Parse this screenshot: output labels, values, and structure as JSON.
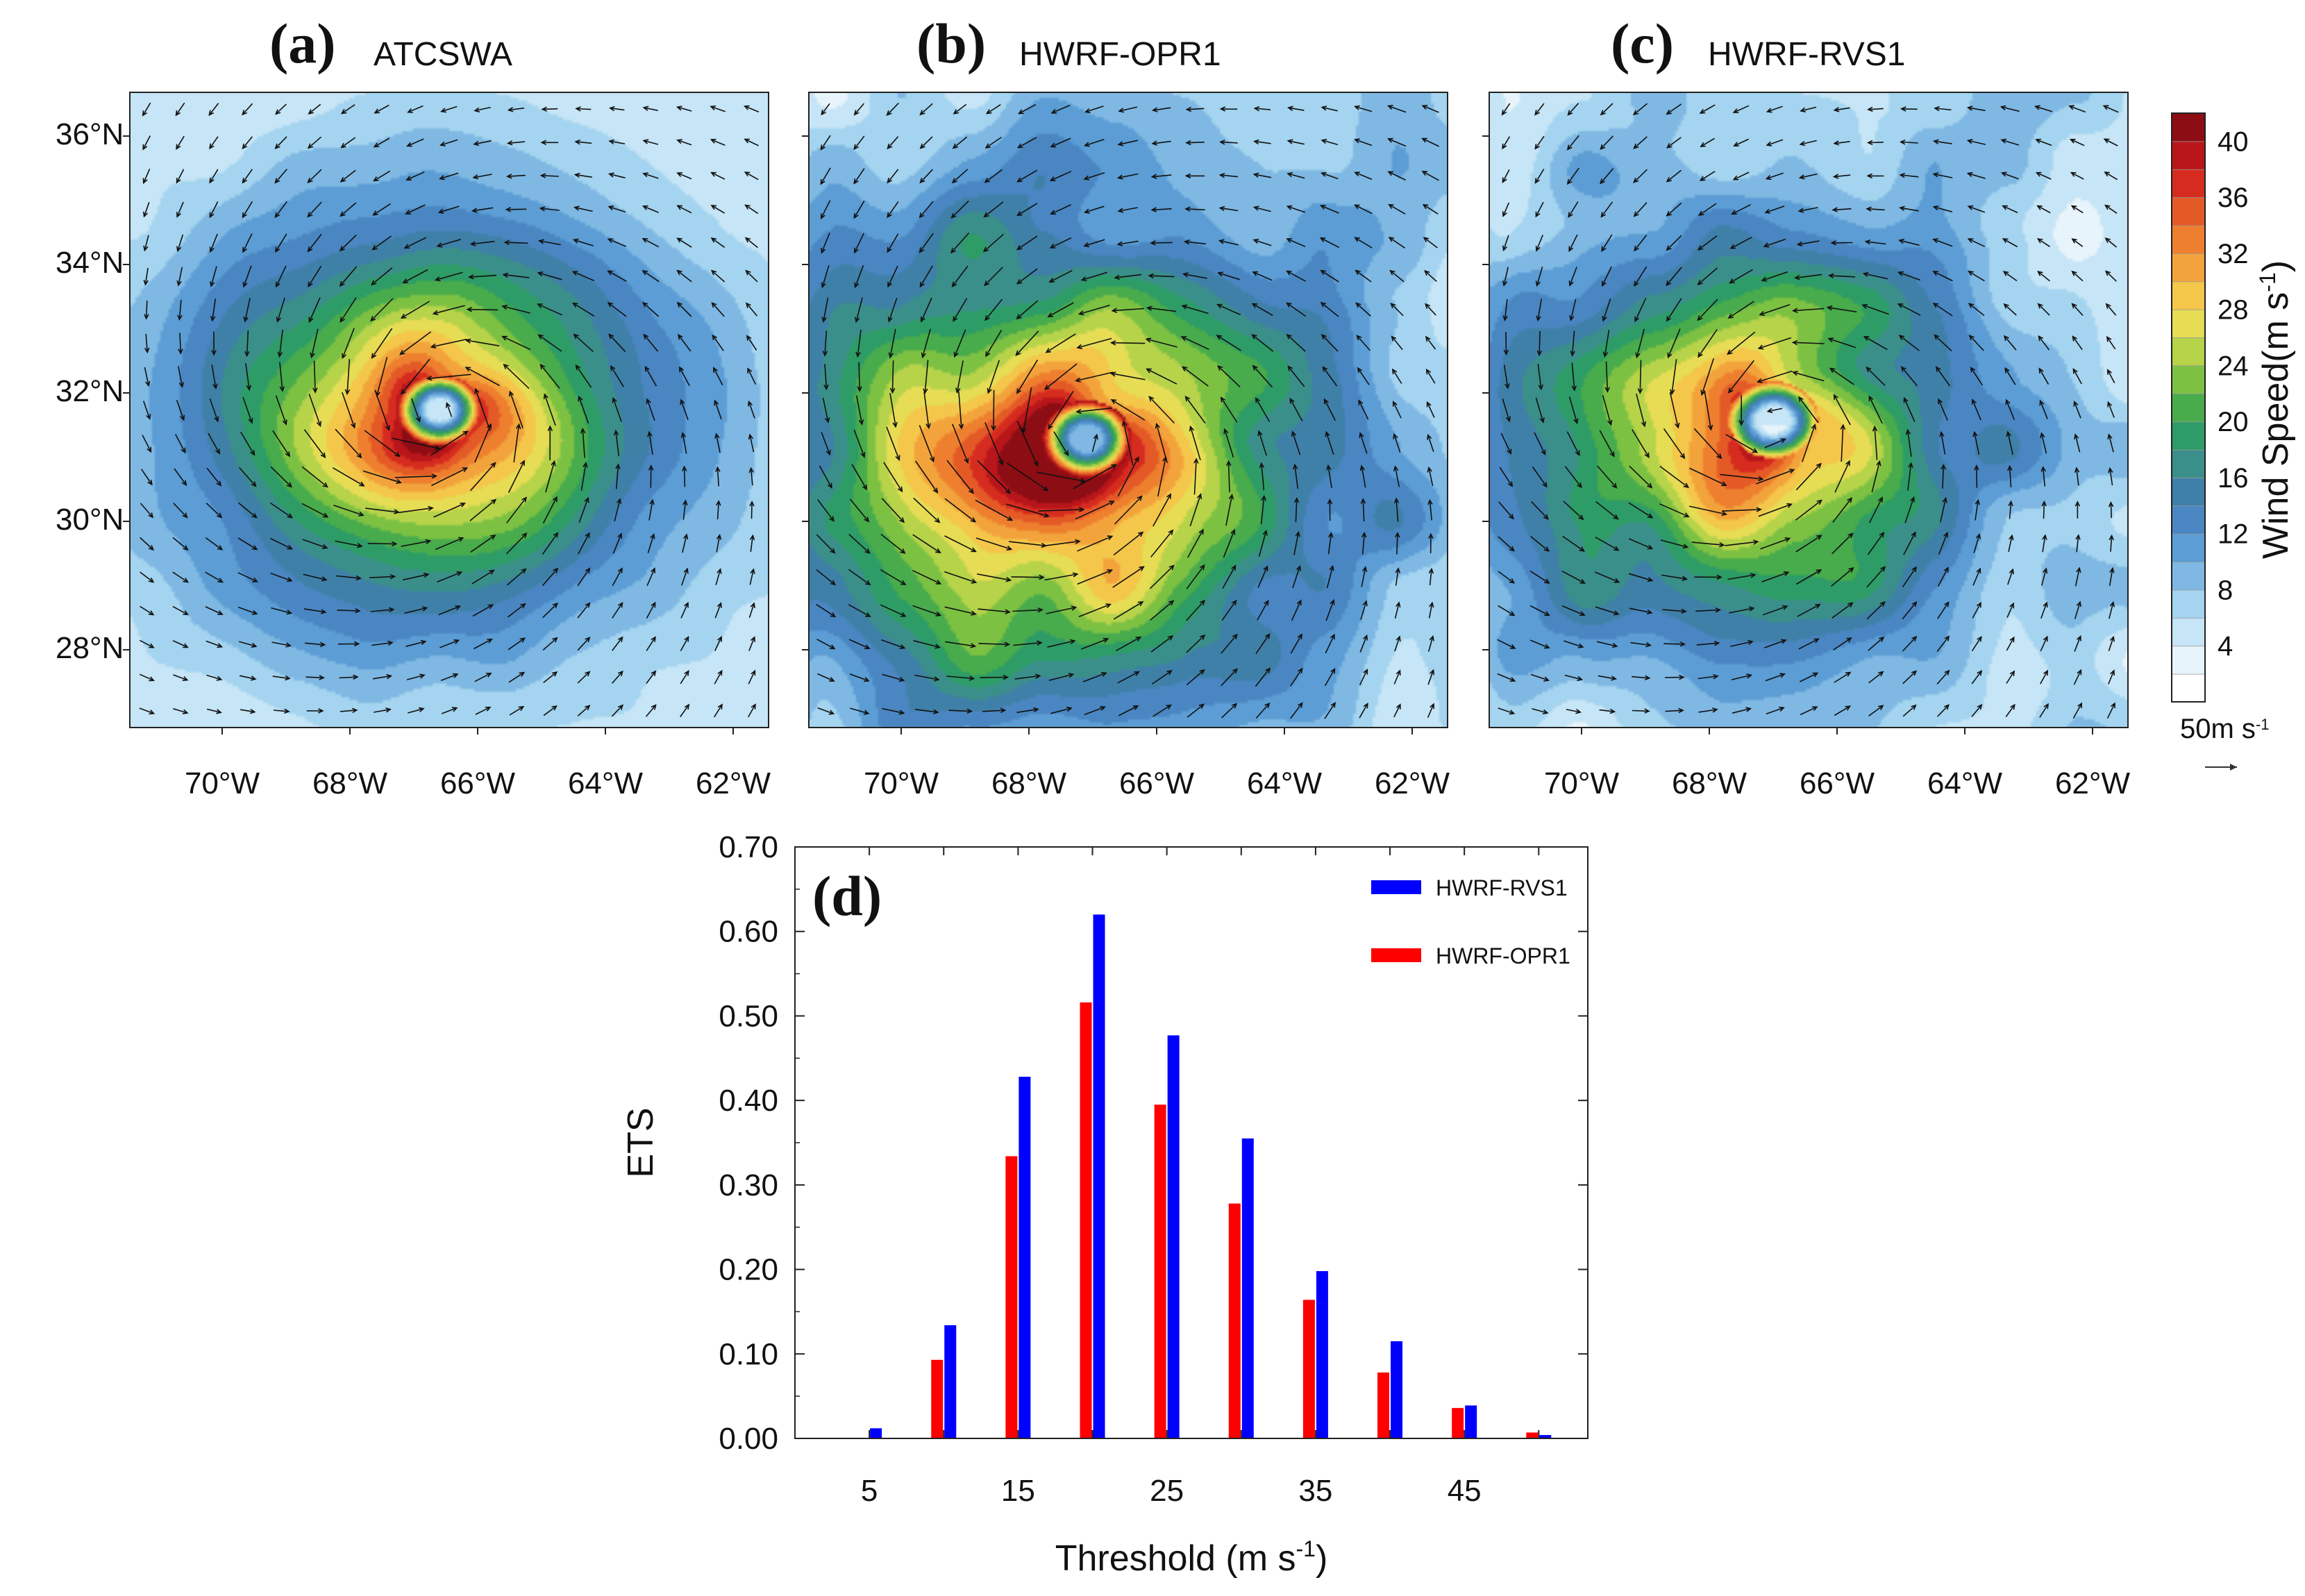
{
  "maps": [
    {
      "letter": "(a)",
      "name": "ATCSWA",
      "center": [
        -66.6,
        31.7
      ],
      "vmax": 38,
      "rmax": 0.55,
      "eye": 0.12,
      "spread": 3.3,
      "asym": 0.1,
      "env": 9
    },
    {
      "letter": "(b)",
      "name": "HWRF-OPR1",
      "center": [
        -67.1,
        31.25
      ],
      "vmax": 40,
      "rmax": 0.6,
      "eye": 0.14,
      "spread": 4.2,
      "asym": 0.22,
      "env": 11
    },
    {
      "letter": "(c)",
      "name": "HWRF-RVS1",
      "center": [
        -67.0,
        31.55
      ],
      "vmax": 34,
      "rmax": 0.6,
      "eye": 0.14,
      "spread": 3.8,
      "asym": 0.2,
      "env": 10
    }
  ],
  "map_axes": {
    "lat_ticks": [
      "36°N",
      "34°N",
      "32°N",
      "30°N",
      "28°N"
    ],
    "lon_ticks": [
      "70°W",
      "68°W",
      "66°W",
      "64°W",
      "62°W"
    ]
  },
  "colorbar": {
    "title": "Wind Speed(m s",
    "title_sup": "-1",
    "title_close": ")",
    "labels": [
      "4",
      "8",
      "12",
      "16",
      "20",
      "24",
      "28",
      "32",
      "36",
      "40"
    ],
    "colors": [
      "#ffffff",
      "#e8f4fb",
      "#c6e5f6",
      "#a4d4ef",
      "#7fb8e3",
      "#5b9dd4",
      "#4a86c2",
      "#3f80a8",
      "#3b8f8a",
      "#2e9c67",
      "#48ab4c",
      "#7dc143",
      "#b6d34a",
      "#e6dd55",
      "#f4c64a",
      "#f3a33b",
      "#ee7f2f",
      "#e45a27",
      "#d62c1f",
      "#b8161b",
      "#8c0d13"
    ],
    "vector_ref": "50m s",
    "vector_ref_sup": "-1"
  },
  "chart_data": {
    "type": "bar",
    "panel_label": "(d)",
    "title": "",
    "xlabel": "Threshold (m s",
    "xlabel_sup": "-1",
    "xlabel_close": ")",
    "ylabel": "ETS",
    "categories": [
      "5",
      "10",
      "15",
      "20",
      "25",
      "30",
      "35",
      "40",
      "45",
      "50"
    ],
    "xtick_labels": [
      "5",
      "15",
      "25",
      "35",
      "45"
    ],
    "ytick_labels": [
      "0.00",
      "0.10",
      "0.20",
      "0.30",
      "0.40",
      "0.50",
      "0.60",
      "0.70"
    ],
    "ylim": [
      0,
      0.7
    ],
    "series": [
      {
        "name": "HWRF-OPR1",
        "color": "#ff0000",
        "values": [
          0.0,
          0.093,
          0.334,
          0.516,
          0.395,
          0.278,
          0.164,
          0.078,
          0.036,
          0.007
        ]
      },
      {
        "name": "HWRF-RVS1",
        "color": "#0000ff",
        "values": [
          0.012,
          0.134,
          0.428,
          0.62,
          0.477,
          0.355,
          0.198,
          0.115,
          0.039,
          0.004
        ]
      }
    ],
    "legend": [
      "HWRF-RVS1",
      "HWRF-OPR1"
    ],
    "legend_position": "top-right"
  }
}
